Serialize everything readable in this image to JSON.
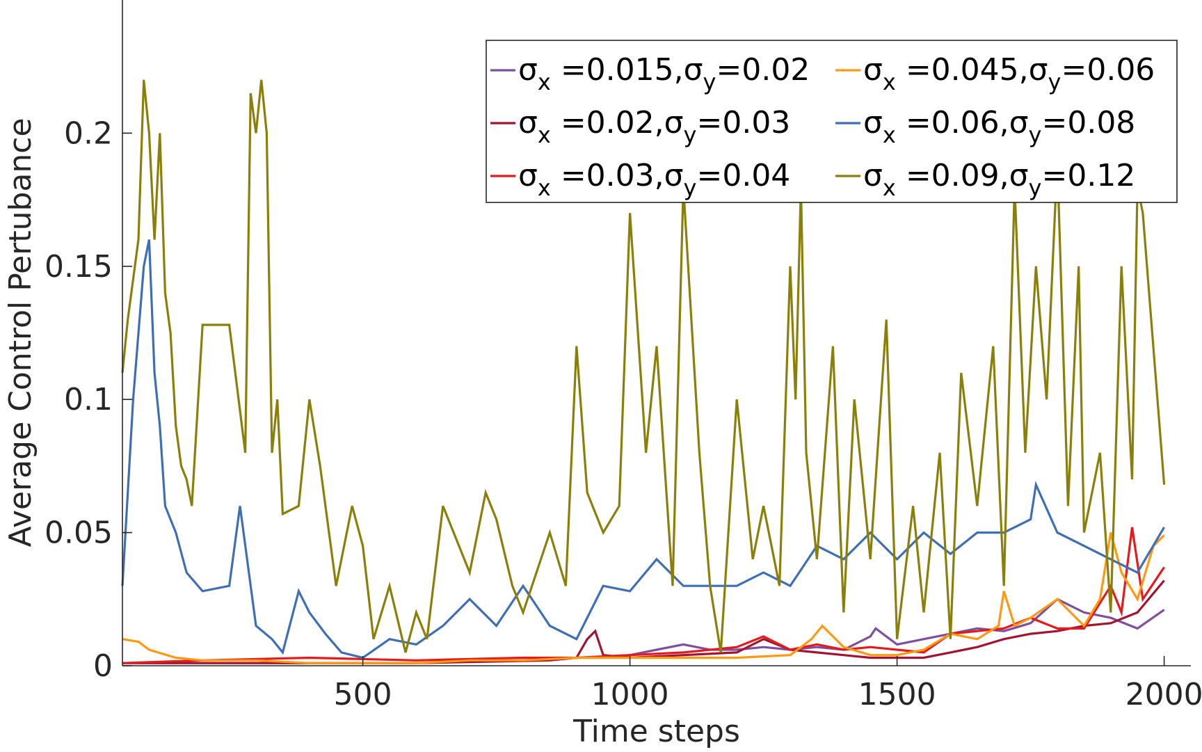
{
  "chart_data": {
    "type": "line",
    "title": "",
    "xlabel": "Time steps",
    "ylabel": "Average Control Pertubance",
    "xlim": [
      50,
      2050
    ],
    "ylim": [
      0,
      0.25
    ],
    "x_ticks": [
      500,
      1000,
      1500,
      2000
    ],
    "x_tick_labels": [
      "500",
      "1000",
      "1500",
      "2000"
    ],
    "y_ticks": [
      0,
      0.05,
      0.1,
      0.15,
      0.2
    ],
    "y_tick_labels": [
      "0",
      "0.05",
      "0.1",
      "0.15",
      "0.2"
    ],
    "grid": false,
    "legend_position": "top-right",
    "legend_columns": 2,
    "series": [
      {
        "name": "σx =0.015,σy=0.02",
        "label_parts": {
          "sx_value": "0.015",
          "sy_value": "0.02"
        },
        "color": "#7E4F9E",
        "x": [
          50,
          200,
          400,
          600,
          800,
          900,
          950,
          1000,
          1050,
          1100,
          1150,
          1200,
          1250,
          1300,
          1350,
          1400,
          1450,
          1460,
          1500,
          1550,
          1600,
          1650,
          1700,
          1750,
          1800,
          1850,
          1900,
          1950,
          2000
        ],
        "values": [
          0.001,
          0.001,
          0.001,
          0.001,
          0.002,
          0.003,
          0.003,
          0.004,
          0.006,
          0.008,
          0.006,
          0.006,
          0.007,
          0.006,
          0.007,
          0.006,
          0.011,
          0.014,
          0.008,
          0.01,
          0.012,
          0.014,
          0.013,
          0.016,
          0.025,
          0.02,
          0.018,
          0.014,
          0.021
        ]
      },
      {
        "name": "σx =0.02,σy=0.03",
        "label_parts": {
          "sx_value": "0.02",
          "sy_value": "0.03"
        },
        "color": "#A2142F",
        "x": [
          50,
          300,
          600,
          850,
          900,
          920,
          935,
          950,
          1000,
          1100,
          1200,
          1250,
          1300,
          1350,
          1400,
          1450,
          1500,
          1550,
          1600,
          1650,
          1700,
          1750,
          1800,
          1850,
          1900,
          1950,
          2000
        ],
        "values": [
          0.001,
          0.001,
          0.001,
          0.002,
          0.003,
          0.01,
          0.013,
          0.004,
          0.003,
          0.004,
          0.005,
          0.01,
          0.006,
          0.005,
          0.004,
          0.003,
          0.003,
          0.003,
          0.005,
          0.007,
          0.01,
          0.012,
          0.013,
          0.015,
          0.016,
          0.02,
          0.032
        ]
      },
      {
        "name": "σx =0.03,σy=0.04",
        "label_parts": {
          "sx_value": "0.03",
          "sy_value": "0.04"
        },
        "color": "#E41A1C",
        "x": [
          50,
          200,
          400,
          600,
          800,
          900,
          1000,
          1100,
          1200,
          1250,
          1300,
          1350,
          1400,
          1450,
          1500,
          1550,
          1600,
          1650,
          1700,
          1750,
          1800,
          1850,
          1900,
          1920,
          1940,
          1960,
          2000
        ],
        "values": [
          0.001,
          0.002,
          0.003,
          0.002,
          0.003,
          0.003,
          0.004,
          0.005,
          0.007,
          0.011,
          0.006,
          0.008,
          0.006,
          0.007,
          0.006,
          0.005,
          0.012,
          0.013,
          0.014,
          0.018,
          0.014,
          0.014,
          0.03,
          0.02,
          0.052,
          0.025,
          0.037
        ]
      },
      {
        "name": "σx =0.045,σy=0.06",
        "label_parts": {
          "sx_value": "0.045",
          "sy_value": "0.06"
        },
        "color": "#FF9911",
        "x": [
          50,
          80,
          100,
          150,
          200,
          300,
          400,
          500,
          600,
          700,
          800,
          900,
          1000,
          1100,
          1200,
          1300,
          1340,
          1360,
          1400,
          1450,
          1500,
          1550,
          1600,
          1650,
          1690,
          1700,
          1720,
          1750,
          1800,
          1850,
          1880,
          1900,
          1920,
          1950,
          1980,
          2000
        ],
        "values": [
          0.01,
          0.009,
          0.006,
          0.003,
          0.002,
          0.002,
          0.001,
          0.001,
          0.001,
          0.002,
          0.002,
          0.003,
          0.003,
          0.003,
          0.003,
          0.004,
          0.01,
          0.015,
          0.007,
          0.004,
          0.004,
          0.006,
          0.012,
          0.01,
          0.015,
          0.028,
          0.015,
          0.018,
          0.025,
          0.015,
          0.025,
          0.05,
          0.035,
          0.025,
          0.045,
          0.049
        ]
      },
      {
        "name": "σx =0.06,σy=0.08",
        "label_parts": {
          "sx_value": "0.06",
          "sy_value": "0.08"
        },
        "color": "#3E6EB4",
        "x": [
          50,
          70,
          90,
          100,
          110,
          120,
          130,
          150,
          170,
          200,
          250,
          270,
          300,
          330,
          350,
          380,
          400,
          430,
          460,
          500,
          550,
          600,
          650,
          700,
          750,
          800,
          850,
          900,
          950,
          1000,
          1050,
          1100,
          1150,
          1200,
          1250,
          1300,
          1350,
          1400,
          1450,
          1500,
          1550,
          1600,
          1650,
          1700,
          1750,
          1760,
          1800,
          1850,
          1900,
          1950,
          2000
        ],
        "values": [
          0.03,
          0.1,
          0.15,
          0.16,
          0.11,
          0.09,
          0.06,
          0.05,
          0.035,
          0.028,
          0.03,
          0.06,
          0.015,
          0.01,
          0.005,
          0.028,
          0.02,
          0.012,
          0.005,
          0.003,
          0.01,
          0.008,
          0.015,
          0.025,
          0.015,
          0.03,
          0.015,
          0.01,
          0.03,
          0.028,
          0.04,
          0.03,
          0.03,
          0.03,
          0.035,
          0.03,
          0.045,
          0.04,
          0.05,
          0.04,
          0.05,
          0.042,
          0.05,
          0.05,
          0.055,
          0.068,
          0.05,
          0.045,
          0.04,
          0.035,
          0.052
        ]
      },
      {
        "name": "σx =0.09,σy=0.12",
        "label_parts": {
          "sx_value": "0.09",
          "sy_value": "0.12"
        },
        "color": "#8A7F08",
        "x": [
          50,
          60,
          80,
          90,
          100,
          110,
          120,
          130,
          140,
          150,
          160,
          170,
          180,
          200,
          250,
          280,
          290,
          300,
          310,
          320,
          330,
          340,
          350,
          380,
          400,
          420,
          450,
          480,
          500,
          520,
          550,
          580,
          600,
          620,
          650,
          700,
          730,
          750,
          780,
          800,
          850,
          880,
          900,
          920,
          950,
          980,
          1000,
          1030,
          1050,
          1080,
          1100,
          1130,
          1150,
          1170,
          1200,
          1230,
          1250,
          1280,
          1300,
          1310,
          1320,
          1330,
          1350,
          1380,
          1400,
          1420,
          1450,
          1480,
          1500,
          1530,
          1550,
          1580,
          1600,
          1620,
          1650,
          1680,
          1700,
          1720,
          1740,
          1760,
          1780,
          1800,
          1820,
          1840,
          1850,
          1880,
          1900,
          1920,
          1940,
          1950,
          1960,
          2000
        ],
        "values": [
          0.11,
          0.13,
          0.16,
          0.22,
          0.2,
          0.16,
          0.2,
          0.14,
          0.125,
          0.09,
          0.075,
          0.07,
          0.06,
          0.128,
          0.128,
          0.08,
          0.215,
          0.2,
          0.22,
          0.2,
          0.08,
          0.1,
          0.057,
          0.06,
          0.1,
          0.075,
          0.03,
          0.06,
          0.045,
          0.01,
          0.03,
          0.005,
          0.02,
          0.01,
          0.06,
          0.035,
          0.065,
          0.055,
          0.03,
          0.02,
          0.05,
          0.03,
          0.12,
          0.065,
          0.05,
          0.06,
          0.17,
          0.08,
          0.12,
          0.03,
          0.18,
          0.08,
          0.03,
          0.005,
          0.1,
          0.04,
          0.06,
          0.03,
          0.15,
          0.1,
          0.18,
          0.08,
          0.04,
          0.12,
          0.02,
          0.1,
          0.04,
          0.13,
          0.01,
          0.06,
          0.02,
          0.08,
          0.01,
          0.11,
          0.06,
          0.12,
          0.03,
          0.18,
          0.08,
          0.15,
          0.1,
          0.19,
          0.06,
          0.15,
          0.05,
          0.08,
          0.02,
          0.15,
          0.07,
          0.18,
          0.17,
          0.068
        ]
      }
    ]
  }
}
